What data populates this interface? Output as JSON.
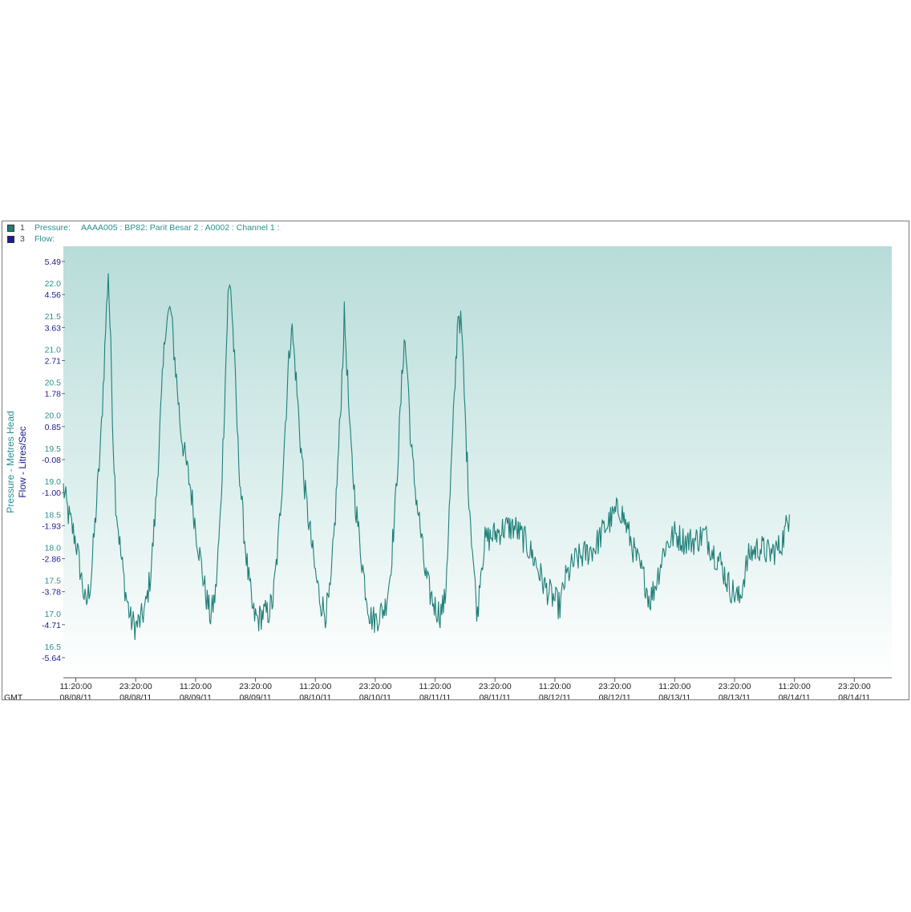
{
  "legend": [
    {
      "number": "1",
      "name": "Pressure:",
      "description": "AAAA005 : BP82: Parit Besar 2 : A0002 : Channel 1 :",
      "swatch_color": "#1f7f78"
    },
    {
      "number": "3",
      "name": "Flow:",
      "description": "",
      "swatch_color": "#1c1c8c"
    }
  ],
  "chart_data": {
    "type": "line",
    "y_axes": [
      {
        "title": "Pressure - Metres Head",
        "color": "#2a8f8f",
        "ticks": [
          "22.0",
          "21.5",
          "21.0",
          "20.5",
          "20.0",
          "19.5",
          "19.0",
          "18.5",
          "18.0",
          "17.5",
          "17.0",
          "16.5"
        ]
      },
      {
        "title": "Flow - Litres/Sec",
        "color": "#1c1c8c",
        "ticks": [
          "5.49",
          "4.56",
          "3.63",
          "2.71",
          "1.78",
          "0.85",
          "-0.08",
          "-1.00",
          "-1.93",
          "-2.86",
          "-3.78",
          "-4.71",
          "-5.64"
        ]
      }
    ],
    "timezone": "GMT",
    "x_ticks": [
      {
        "time": "11:20:00",
        "date": "08/08/11"
      },
      {
        "time": "23:20:00",
        "date": "08/08/11"
      },
      {
        "time": "11:20:00",
        "date": "08/09/11"
      },
      {
        "time": "23:20:00",
        "date": "08/09/11"
      },
      {
        "time": "11:20:00",
        "date": "08/10/11"
      },
      {
        "time": "23:20:00",
        "date": "08/10/11"
      },
      {
        "time": "11:20:00",
        "date": "08/11/11"
      },
      {
        "time": "23:20:00",
        "date": "08/11/11"
      },
      {
        "time": "11:20:00",
        "date": "08/12/11"
      },
      {
        "time": "23:20:00",
        "date": "08/12/11"
      },
      {
        "time": "11:20:00",
        "date": "08/13/11"
      },
      {
        "time": "23:20:00",
        "date": "08/13/11"
      },
      {
        "time": "11:20:00",
        "date": "08/14/11"
      },
      {
        "time": "23:20:00",
        "date": "08/14/11"
      }
    ],
    "x_range_hours": [
      -2.5,
      163.5
    ],
    "series": [
      {
        "name": "Pressure",
        "color": "#1f7f78",
        "points": [
          [
            -2.5,
            18.9
          ],
          [
            -1.5,
            18.5
          ],
          [
            0,
            18.1
          ],
          [
            1,
            17.6
          ],
          [
            2,
            17.1
          ],
          [
            3,
            17.5
          ],
          [
            4,
            18.5
          ],
          [
            5,
            19.6
          ],
          [
            5.8,
            21.0
          ],
          [
            6.5,
            22.2
          ],
          [
            7,
            21.0
          ],
          [
            7.5,
            19.6
          ],
          [
            8,
            18.7
          ],
          [
            9,
            17.9
          ],
          [
            10,
            17.3
          ],
          [
            11,
            16.9
          ],
          [
            12,
            16.8
          ],
          [
            13,
            16.9
          ],
          [
            14,
            17.1
          ],
          [
            15,
            17.6
          ],
          [
            16,
            18.6
          ],
          [
            17,
            20.0
          ],
          [
            18,
            21.4
          ],
          [
            19,
            21.6
          ],
          [
            20,
            20.7
          ],
          [
            21,
            19.8
          ],
          [
            22,
            19.3
          ],
          [
            23,
            18.9
          ],
          [
            24,
            18.3
          ],
          [
            25,
            17.8
          ],
          [
            26,
            17.3
          ],
          [
            27,
            16.95
          ],
          [
            28,
            17.3
          ],
          [
            29,
            18.5
          ],
          [
            29.8,
            20.2
          ],
          [
            30.5,
            21.8
          ],
          [
            31,
            22.0
          ],
          [
            31.8,
            20.8
          ],
          [
            32.5,
            19.5
          ],
          [
            33.5,
            18.4
          ],
          [
            34.5,
            17.6
          ],
          [
            35.5,
            17.0
          ],
          [
            36.5,
            16.9
          ],
          [
            37.5,
            17.0
          ],
          [
            38.5,
            17.0
          ],
          [
            39.5,
            17.2
          ],
          [
            40.5,
            18.0
          ],
          [
            41.5,
            19.2
          ],
          [
            42.5,
            20.6
          ],
          [
            43.2,
            21.4
          ],
          [
            44,
            20.7
          ],
          [
            45,
            19.6
          ],
          [
            46,
            18.8
          ],
          [
            47,
            18.2
          ],
          [
            48,
            17.6
          ],
          [
            49,
            17.2
          ],
          [
            50,
            17.0
          ],
          [
            51,
            17.3
          ],
          [
            52,
            18.5
          ],
          [
            53,
            20.0
          ],
          [
            53.8,
            21.5
          ],
          [
            54.3,
            20.8
          ],
          [
            55,
            19.6
          ],
          [
            56,
            18.7
          ],
          [
            57,
            18.0
          ],
          [
            58,
            17.4
          ],
          [
            59,
            16.95
          ],
          [
            60,
            16.9
          ],
          [
            61,
            17.0
          ],
          [
            62,
            17.1
          ],
          [
            63,
            17.6
          ],
          [
            64,
            18.6
          ],
          [
            65,
            20.0
          ],
          [
            65.8,
            21.2
          ],
          [
            66.5,
            20.6
          ],
          [
            67.2,
            19.5
          ],
          [
            68,
            18.9
          ],
          [
            69,
            18.3
          ],
          [
            70,
            17.6
          ],
          [
            71,
            17.3
          ],
          [
            72,
            17.1
          ],
          [
            73,
            17.0
          ],
          [
            74,
            17.2
          ],
          [
            75,
            18.8
          ],
          [
            76,
            20.5
          ],
          [
            76.6,
            21.6
          ],
          [
            77.3,
            21.3
          ],
          [
            78,
            20.0
          ],
          [
            78.6,
            19.0
          ],
          [
            79.3,
            18.2
          ],
          [
            80,
            17.4
          ],
          [
            80.5,
            16.95
          ],
          [
            81,
            17.6
          ],
          [
            82,
            18.1
          ],
          [
            84,
            18.2
          ],
          [
            86,
            18.3
          ],
          [
            88,
            18.3
          ],
          [
            90,
            18.1
          ],
          [
            92,
            17.8
          ],
          [
            94,
            17.4
          ],
          [
            96,
            17.2
          ],
          [
            97,
            17.1
          ],
          [
            98,
            17.5
          ],
          [
            100,
            17.8
          ],
          [
            102,
            17.9
          ],
          [
            104,
            18.0
          ],
          [
            106,
            18.3
          ],
          [
            108,
            18.5
          ],
          [
            109,
            18.6
          ],
          [
            110,
            18.4
          ],
          [
            112,
            17.9
          ],
          [
            114,
            17.5
          ],
          [
            115,
            17.2
          ],
          [
            116,
            17.4
          ],
          [
            118,
            18.0
          ],
          [
            120,
            18.2
          ],
          [
            122,
            18.1
          ],
          [
            124,
            18.1
          ],
          [
            126,
            18.2
          ],
          [
            128,
            17.9
          ],
          [
            129,
            17.8
          ],
          [
            130,
            17.6
          ],
          [
            131,
            17.4
          ],
          [
            132,
            17.3
          ],
          [
            133,
            17.2
          ],
          [
            134,
            17.6
          ],
          [
            135,
            17.9
          ],
          [
            137,
            18.0
          ],
          [
            139,
            17.9
          ],
          [
            141,
            18.0
          ],
          [
            142,
            18.2
          ],
          [
            143,
            18.5
          ]
        ]
      }
    ]
  }
}
